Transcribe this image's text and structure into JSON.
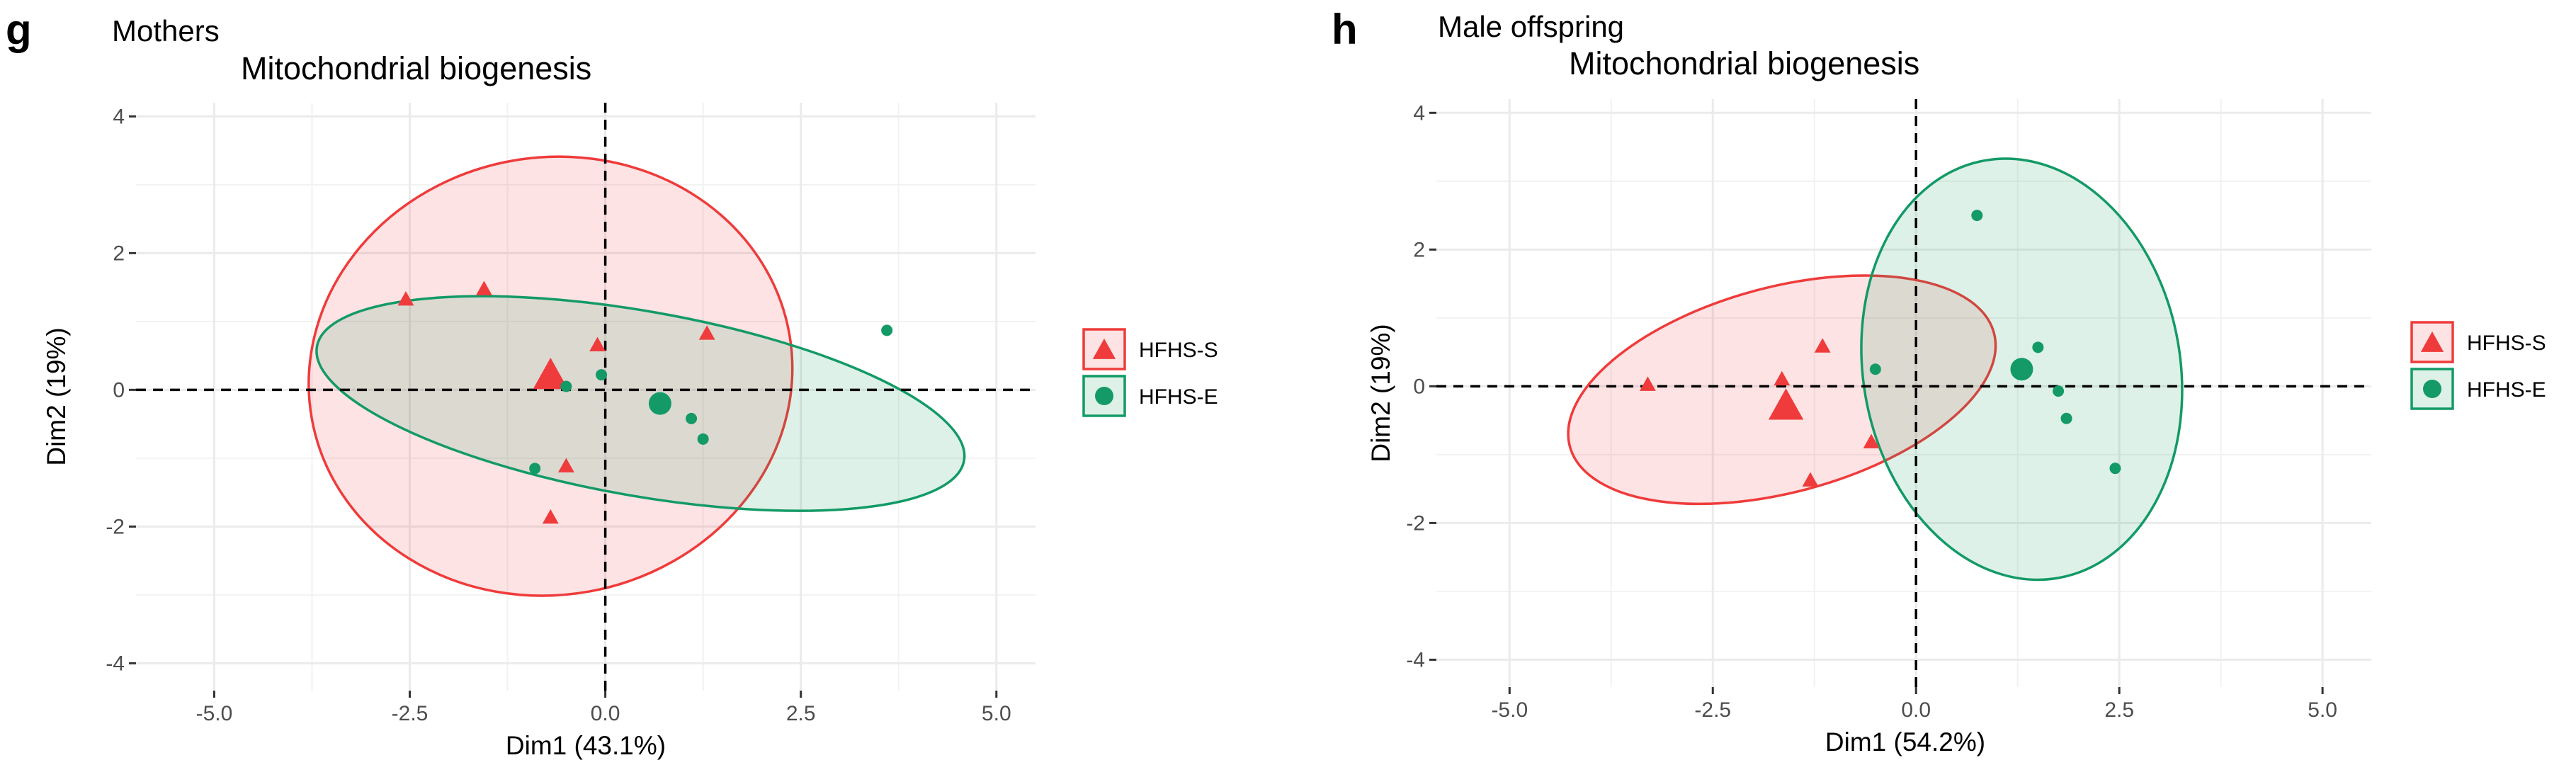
{
  "colors": {
    "HFHS-S": "#ef3b3b",
    "HFHS-E": "#139a66",
    "grid": "#ebebeb"
  },
  "chart_data": [
    {
      "type": "scatter",
      "panel": "g",
      "subtitle": "Mothers",
      "title": "Mitochondrial biogenesis",
      "xlabel": "Dim1 (43.1%)",
      "ylabel": "Dim2 (19%)",
      "xlim": [
        -6.0,
        5.5
      ],
      "ylim": [
        -4.4,
        4.2
      ],
      "xticks": [
        -5.0,
        -2.5,
        0.0,
        2.5,
        5.0
      ],
      "xtick_labels": [
        "-5.0",
        "-2.5",
        "0.0",
        "2.5",
        "5.0"
      ],
      "yticks": [
        -4,
        -2,
        0,
        2,
        4
      ],
      "ytick_labels": [
        "-4",
        "-2",
        "0",
        "2",
        "4"
      ],
      "grid": true,
      "legend_position": "right",
      "series": [
        {
          "name": "HFHS-S",
          "marker": "triangle",
          "points": [
            [
              -2.55,
              1.32
            ],
            [
              -1.55,
              1.47
            ],
            [
              -0.1,
              0.65
            ],
            [
              1.3,
              0.82
            ],
            [
              -0.5,
              -1.12
            ],
            [
              -0.7,
              -1.87
            ]
          ],
          "centroid": [
            -0.7,
            0.2
          ],
          "ellipse": {
            "center": [
              -0.7,
              0.2
            ],
            "semi_axes": [
              3.1,
              3.2
            ],
            "angle_deg": -10
          }
        },
        {
          "name": "HFHS-E",
          "marker": "circle",
          "points": [
            [
              3.6,
              0.87
            ],
            [
              -0.5,
              0.05
            ],
            [
              -0.05,
              0.22
            ],
            [
              1.1,
              -0.42
            ],
            [
              1.25,
              -0.72
            ],
            [
              -0.9,
              -1.15
            ]
          ],
          "centroid": [
            0.7,
            -0.2
          ],
          "ellipse": {
            "center": [
              0.45,
              -0.2
            ],
            "semi_axes": [
              4.2,
              1.35
            ],
            "angle_deg": 10
          }
        }
      ]
    },
    {
      "type": "scatter",
      "panel": "h",
      "subtitle": "Male offspring",
      "title": "Mitochondrial biogenesis",
      "xlabel": "Dim1 (54.2%)",
      "ylabel": "Dim2 (19%)",
      "xlim": [
        -5.9,
        5.6
      ],
      "ylim": [
        -4.4,
        4.2
      ],
      "xticks": [
        -5.0,
        -2.5,
        0.0,
        2.5,
        5.0
      ],
      "xtick_labels": [
        "-5.0",
        "-2.5",
        "0.0",
        "2.5",
        "5.0"
      ],
      "yticks": [
        -4,
        -2,
        0,
        2,
        4
      ],
      "ytick_labels": [
        "-4",
        "-2",
        "0",
        "2",
        "4"
      ],
      "grid": true,
      "legend_position": "right",
      "series": [
        {
          "name": "HFHS-S",
          "marker": "triangle",
          "points": [
            [
              -3.3,
              0.02
            ],
            [
              -1.65,
              0.1
            ],
            [
              -1.15,
              0.58
            ],
            [
              -1.3,
              -1.38
            ],
            [
              -0.55,
              -0.82
            ]
          ],
          "centroid": [
            -1.6,
            -0.3
          ],
          "ellipse": {
            "center": [
              -1.65,
              -0.05
            ],
            "semi_axes": [
              2.7,
              1.5
            ],
            "angle_deg": -15
          }
        },
        {
          "name": "HFHS-E",
          "marker": "circle",
          "points": [
            [
              0.75,
              2.5
            ],
            [
              1.5,
              0.57
            ],
            [
              -0.5,
              0.25
            ],
            [
              1.75,
              -0.07
            ],
            [
              1.85,
              -0.47
            ],
            [
              2.45,
              -1.2
            ]
          ],
          "centroid": [
            1.3,
            0.25
          ],
          "ellipse": {
            "center": [
              1.3,
              0.25
            ],
            "semi_axes": [
              1.95,
              3.1
            ],
            "angle_deg": -10
          }
        }
      ]
    }
  ]
}
